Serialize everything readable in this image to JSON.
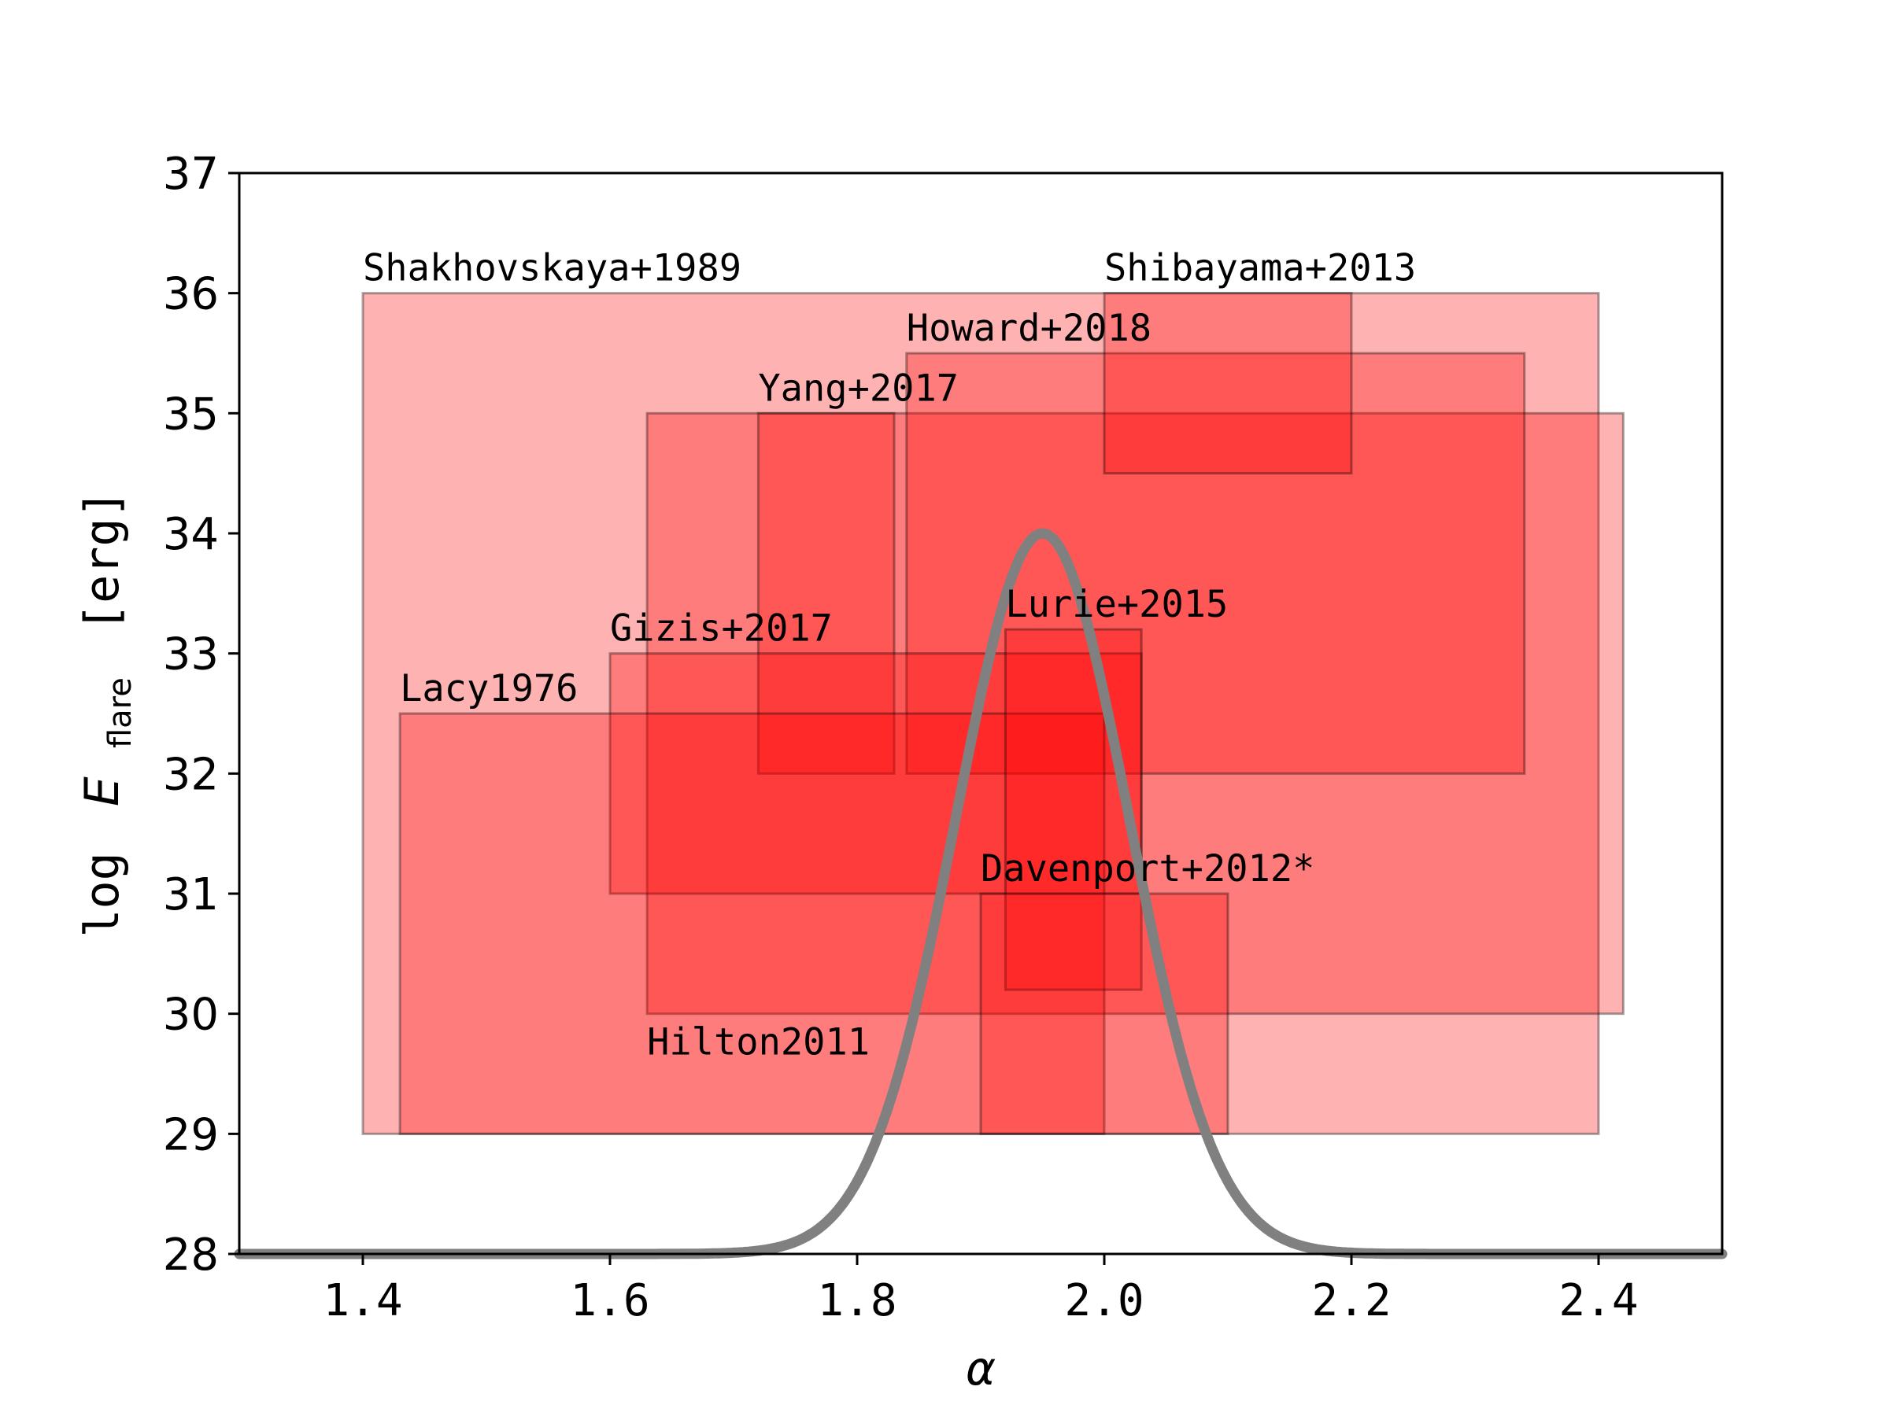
{
  "chart_data": {
    "type": "rectangles",
    "xlabel": "α",
    "ylabel": {
      "prefix": "log",
      "symbol": "E",
      "subscript": "flare",
      "unit": "[erg]"
    },
    "xlim": [
      1.3,
      2.5
    ],
    "ylim": [
      28,
      37
    ],
    "xticks": [
      "1.4",
      "1.6",
      "1.8",
      "2.0",
      "2.2",
      "2.4"
    ],
    "yticks": [
      "28",
      "29",
      "30",
      "31",
      "32",
      "33",
      "34",
      "35",
      "36",
      "37"
    ],
    "fill_color": "#ff0000",
    "edge_color": "#000000",
    "curve_color": "#808080",
    "rectangles": [
      {
        "label": "Shakhovskaya+1989",
        "x0": 1.4,
        "x1": 2.4,
        "y0": 29.0,
        "y1": 36.0,
        "label_pos": "top-left"
      },
      {
        "label": "Hilton2011",
        "x0": 1.63,
        "x1": 2.42,
        "y0": 30.0,
        "y1": 35.0,
        "label_pos": "below-left"
      },
      {
        "label": "Yang+2017",
        "x0": 1.72,
        "x1": 1.83,
        "y0": 32.0,
        "y1": 35.0,
        "label_pos": "top-left"
      },
      {
        "label": "Howard+2018",
        "x0": 1.84,
        "x1": 2.34,
        "y0": 32.0,
        "y1": 35.5,
        "label_pos": "top-left"
      },
      {
        "label": "Shibayama+2013",
        "x0": 2.0,
        "x1": 2.2,
        "y0": 34.5,
        "y1": 36.0,
        "label_pos": "top-left"
      },
      {
        "label": "Gizis+2017",
        "x0": 1.6,
        "x1": 2.03,
        "y0": 31.0,
        "y1": 33.0,
        "label_pos": "top-left"
      },
      {
        "label": "Lacy1976",
        "x0": 1.43,
        "x1": 2.0,
        "y0": 29.0,
        "y1": 32.5,
        "label_pos": "top-left"
      },
      {
        "label": "Lurie+2015",
        "x0": 1.92,
        "x1": 2.03,
        "y0": 30.2,
        "y1": 33.2,
        "label_pos": "top-left"
      },
      {
        "label": "Davenport+2012*",
        "x0": 1.9,
        "x1": 2.1,
        "y0": 29.0,
        "y1": 31.0,
        "label_pos": "top-left"
      }
    ],
    "gaussian_curve": {
      "mean": 1.95,
      "sigma": 0.07,
      "baseline": 28.0,
      "peak": 34.0
    }
  }
}
